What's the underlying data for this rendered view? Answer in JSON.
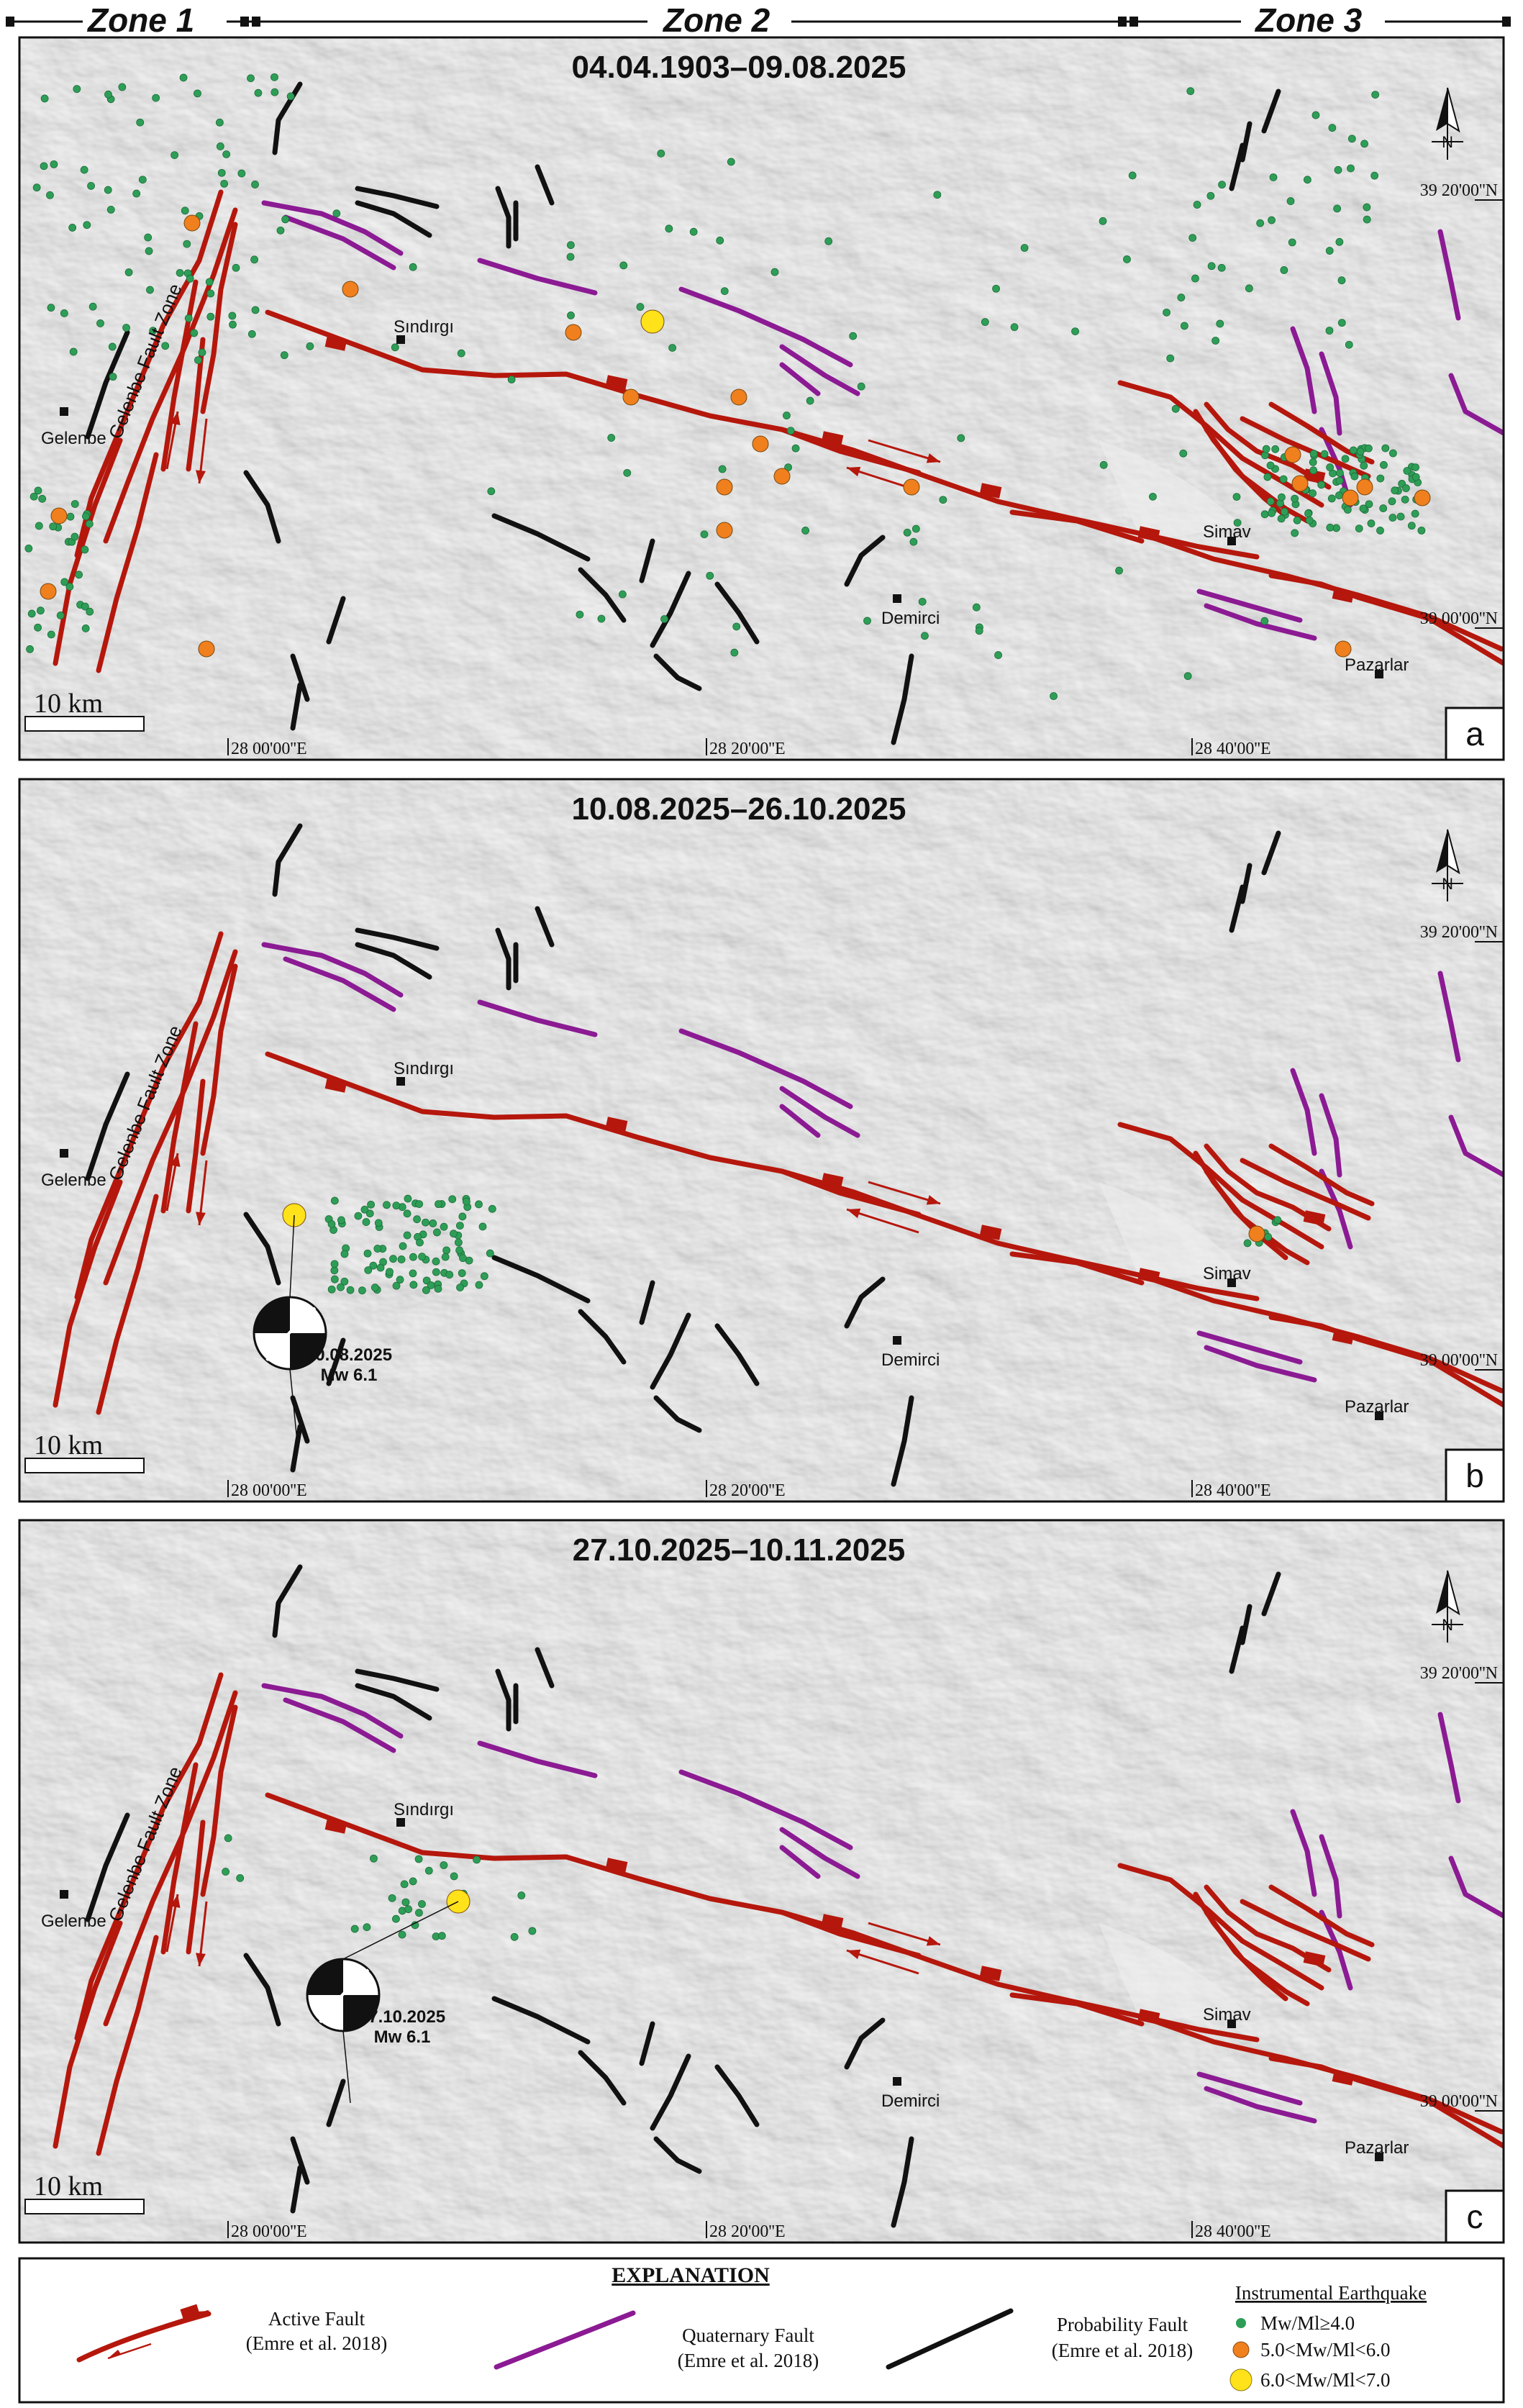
{
  "zones": [
    "Zone 1",
    "Zone 2",
    "Zone 3"
  ],
  "panels": [
    {
      "letter": "a",
      "title": "04.04.1903–09.08.2025",
      "show_big_cluster": true,
      "mechanism": null
    },
    {
      "letter": "b",
      "title": "10.08.2025–26.10.2025",
      "show_big_cluster": false,
      "mechanism": {
        "date": "10.08.2025",
        "mag": "Mw 6.1"
      }
    },
    {
      "letter": "c",
      "title": "27.10.2025–10.11.2025",
      "show_big_cluster": false,
      "mechanism": {
        "date": "27.10.2025",
        "mag": "Mw 6.1"
      }
    }
  ],
  "places": {
    "gelenbe": "Gelenbe",
    "sindirgi": "Sındırgı",
    "demirci": "Demirci",
    "simav": "Simav",
    "pazarlar": "Pazarlar"
  },
  "fault_zone_label": "Gelenbe Fault Zone",
  "coords": {
    "lon1": "28 00'00''E",
    "lon2": "28 20'00''E",
    "lon3": "28 40'00''E",
    "lat1": "39 20'00''N",
    "lat2": "39 00'00''N"
  },
  "scale_label": "10 km",
  "north_label": "N",
  "legend": {
    "title": "EXPLANATION",
    "active_fault": "Active Fault",
    "active_fault_src": "(Emre et al. 2018)",
    "quaternary_fault": "Quaternary Fault",
    "quaternary_fault_src": "(Emre et al. 2018)",
    "probability_fault": "Probability Fault",
    "probability_fault_src": "(Emre et al. 2018)",
    "eq_title": "Instrumental Earthquake",
    "eq_small": "Mw/Ml≥4.0",
    "eq_medium": "5.0<Mw/Ml<6.0",
    "eq_large": "6.0<Mw/Ml<7.0"
  },
  "colors": {
    "active_fault": "#b5170c",
    "quaternary_fault": "#8b1a93",
    "probability_fault": "#111111",
    "eq_small": "#2e9e57",
    "eq_medium": "#f07f1d",
    "eq_large": "#ffe21a",
    "terrain": "#d9d9d9"
  }
}
